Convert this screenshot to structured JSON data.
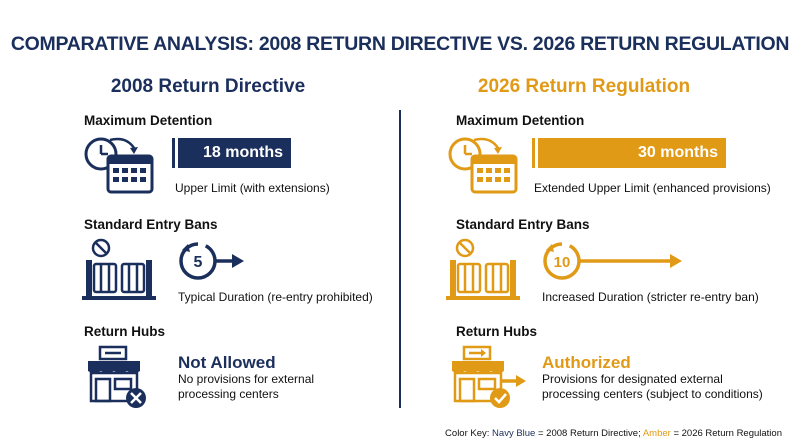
{
  "title": "COMPARATIVE ANALYSIS: 2008 RETURN DIRECTIVE VS. 2026 RETURN REGULATION",
  "colors": {
    "navy": "#1b2f5c",
    "amber": "#e09a16"
  },
  "left": {
    "heading": "2008 Return Directive",
    "detention": {
      "label": "Maximum Detention",
      "value": "18 months",
      "caption": "Upper Limit (with extensions)",
      "months": 18
    },
    "entry_bans": {
      "label": "Standard Entry Bans",
      "timer_value": "5",
      "caption": "Typical Duration (re-entry prohibited)"
    },
    "return_hubs": {
      "label": "Return Hubs",
      "status": "Not Allowed",
      "caption_line1": "No provisions for external",
      "caption_line2": "processing centers"
    }
  },
  "right": {
    "heading": "2026 Return Regulation",
    "detention": {
      "label": "Maximum Detention",
      "value": "30 months",
      "caption": "Extended Upper Limit (enhanced provisions)",
      "months": 30
    },
    "entry_bans": {
      "label": "Standard Entry Bans",
      "timer_value": "10",
      "caption": "Increased Duration (stricter re-entry ban)"
    },
    "return_hubs": {
      "label": "Return Hubs",
      "status": "Authorized",
      "caption_line1": "Provisions for designated external",
      "caption_line2": "processing centers (subject to conditions)"
    }
  },
  "footer": {
    "prefix": "Color Key: ",
    "navy_word": "Navy Blue",
    "mid": " = 2008 Return Directive; ",
    "amber_word": "Amber",
    "suffix": " = 2026 Return Regulation"
  }
}
